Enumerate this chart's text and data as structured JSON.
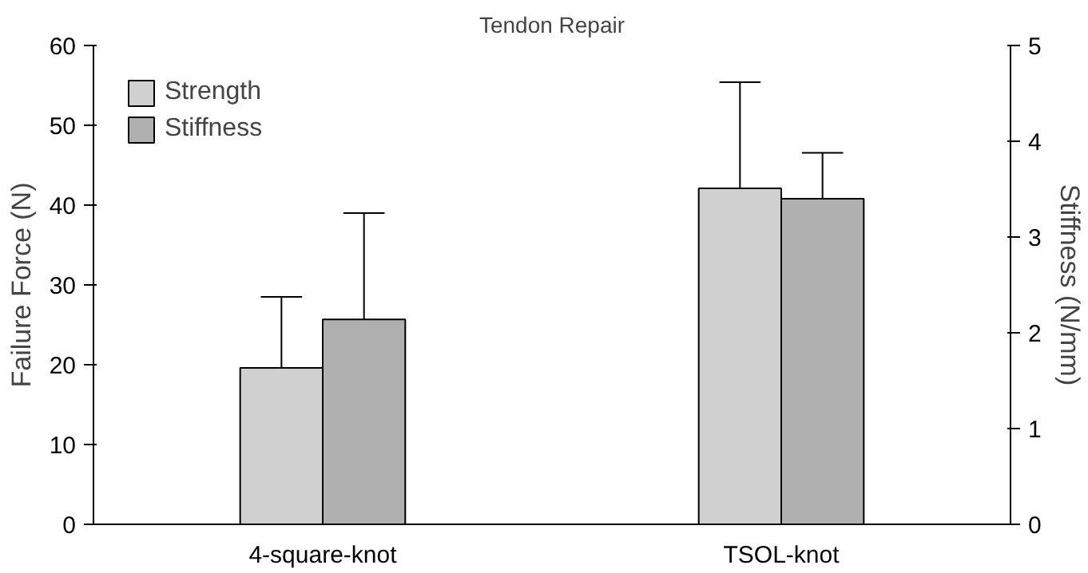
{
  "chart_data": {
    "type": "bar",
    "title": "Tendon Repair",
    "ylabel": "Failure Force (N)",
    "y2label": "Stiffness (N/mm)",
    "categories": [
      "4-square-knot",
      "TSOL-knot"
    ],
    "series": [
      {
        "name": "Strength",
        "color": "#d0d0d0",
        "values": [
          19.6,
          42.1
        ],
        "errors": [
          [
            19.6,
            28.5
          ],
          [
            42.1,
            55.4
          ]
        ]
      },
      {
        "name": "Stiffness",
        "color": "#b0b0b0",
        "axis": "y2",
        "values": [
          2.14,
          3.4
        ],
        "errors": [
          [
            2.14,
            3.25
          ],
          [
            3.4,
            3.88
          ]
        ]
      }
    ],
    "ylim": [
      0,
      60
    ],
    "yticks": [
      0,
      10,
      20,
      30,
      40,
      50,
      60
    ],
    "y2lim": [
      0,
      5
    ],
    "y2ticks": [
      0,
      1,
      2,
      3,
      4,
      5
    ],
    "grid": false,
    "legend": "top left"
  }
}
